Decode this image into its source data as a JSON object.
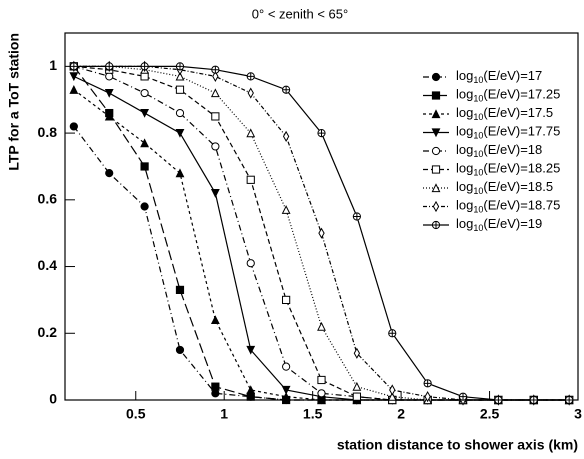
{
  "chart_data": {
    "type": "line",
    "title": "0° < zenith < 65°",
    "xlabel": "station distance to shower axis (km)",
    "ylabel": "LTP for a ToT station",
    "xlim": [
      0.1,
      3
    ],
    "ylim": [
      0,
      1.1
    ],
    "xticks": [
      0.5,
      1,
      1.5,
      2,
      2.5,
      3
    ],
    "yticks": [
      0,
      0.2,
      0.4,
      0.6,
      0.8,
      1
    ],
    "x": [
      0.15,
      0.35,
      0.55,
      0.75,
      0.95,
      1.15,
      1.35,
      1.55,
      1.75,
      1.95,
      2.15,
      2.35,
      2.55,
      2.75,
      2.95
    ],
    "series": [
      {
        "name": "log10(E/eV)=17",
        "color": "#000000",
        "marker": "circle-filled",
        "dash": "6 3 1 3",
        "values": [
          0.82,
          0.68,
          0.58,
          0.15,
          0.02,
          0.01,
          0,
          0,
          0,
          0,
          0,
          0,
          0,
          0,
          0
        ]
      },
      {
        "name": "log10(E/eV)=17.25",
        "color": "#000000",
        "marker": "square-filled",
        "dash": "10 4",
        "values": [
          1.0,
          0.86,
          0.7,
          0.33,
          0.04,
          0.01,
          0,
          0,
          0,
          0,
          0,
          0,
          0,
          0,
          0
        ]
      },
      {
        "name": "log10(E/eV)=17.5",
        "color": "#000000",
        "marker": "triangle-filled",
        "dash": "3 3",
        "values": [
          0.93,
          0.85,
          0.77,
          0.68,
          0.24,
          0.03,
          0.01,
          0,
          0,
          0,
          0,
          0,
          0,
          0,
          0
        ]
      },
      {
        "name": "log10(E/eV)=17.75",
        "color": "#000000",
        "marker": "triangle-down-filled",
        "dash": "",
        "values": [
          0.97,
          0.92,
          0.86,
          0.8,
          0.62,
          0.15,
          0.03,
          0.01,
          0,
          0,
          0,
          0,
          0,
          0,
          0
        ]
      },
      {
        "name": "log10(E/eV)=18",
        "color": "#000000",
        "marker": "circle-open",
        "dash": "6 3 1 3",
        "values": [
          1.0,
          0.97,
          0.92,
          0.86,
          0.76,
          0.41,
          0.1,
          0.02,
          0.01,
          0,
          0,
          0,
          0,
          0,
          0
        ]
      },
      {
        "name": "log10(E/eV)=18.25",
        "color": "#000000",
        "marker": "square-open",
        "dash": "5 3",
        "values": [
          1.0,
          0.99,
          0.97,
          0.93,
          0.85,
          0.66,
          0.3,
          0.06,
          0.01,
          0,
          0,
          0,
          0,
          0,
          0
        ]
      },
      {
        "name": "log10(E/eV)=18.5",
        "color": "#000000",
        "marker": "triangle-open",
        "dash": "1 2",
        "values": [
          1.0,
          1.0,
          0.99,
          0.97,
          0.92,
          0.8,
          0.57,
          0.22,
          0.04,
          0.01,
          0,
          0,
          0,
          0,
          0
        ]
      },
      {
        "name": "log10(E/eV)=18.75",
        "color": "#000000",
        "marker": "diamond-open",
        "dash": "4 2 1 2",
        "values": [
          1.0,
          1.0,
          1.0,
          0.99,
          0.97,
          0.92,
          0.79,
          0.5,
          0.14,
          0.03,
          0.01,
          0,
          0,
          0,
          0
        ]
      },
      {
        "name": "log10(E/eV)=19",
        "color": "#000000",
        "marker": "cross-circle-open",
        "dash": "",
        "values": [
          1.0,
          1.0,
          1.0,
          1.0,
          0.99,
          0.97,
          0.93,
          0.8,
          0.55,
          0.2,
          0.05,
          0.01,
          0,
          0,
          0
        ]
      }
    ]
  }
}
